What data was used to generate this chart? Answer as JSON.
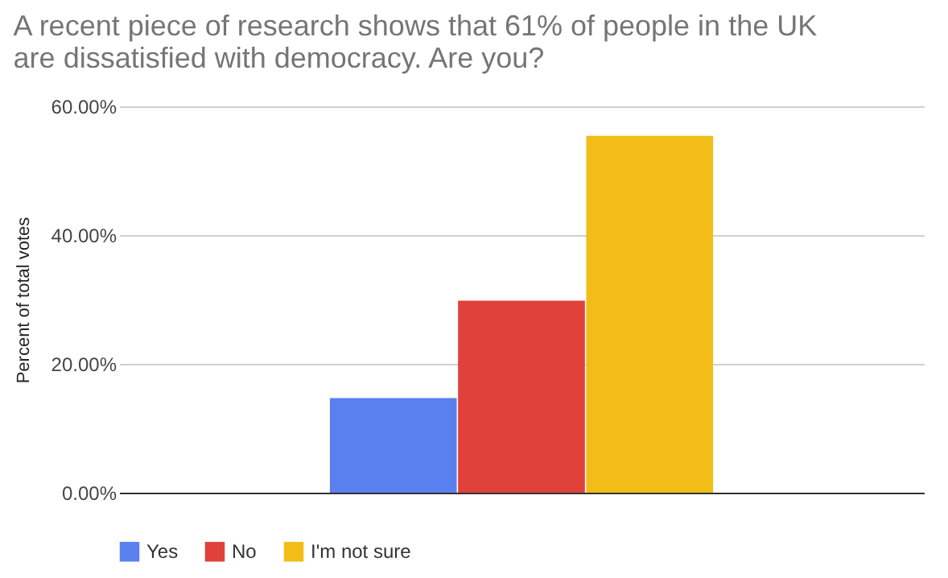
{
  "chart_data": {
    "type": "bar",
    "title": "A recent piece of research shows that 61% of people in the UK are dissatisfied with democracy. Are you?",
    "ylabel": "Percent of total votes",
    "categories": [
      null
    ],
    "series": [
      {
        "name": "Yes",
        "color": "#5a80ef",
        "values": [
          14.7
        ]
      },
      {
        "name": "No",
        "color": "#e0413a",
        "values": [
          29.8
        ]
      },
      {
        "name": "I'm not sure",
        "color": "#f1bd16",
        "values": [
          55.4
        ]
      }
    ],
    "ylim": [
      0,
      60
    ],
    "yticks": [
      {
        "value": 0,
        "label": "0.00%"
      },
      {
        "value": 20,
        "label": "20.00%"
      },
      {
        "value": 40,
        "label": "40.00%"
      },
      {
        "value": 60,
        "label": "60.00%"
      }
    ],
    "grid": "y",
    "legend": "bottom"
  }
}
